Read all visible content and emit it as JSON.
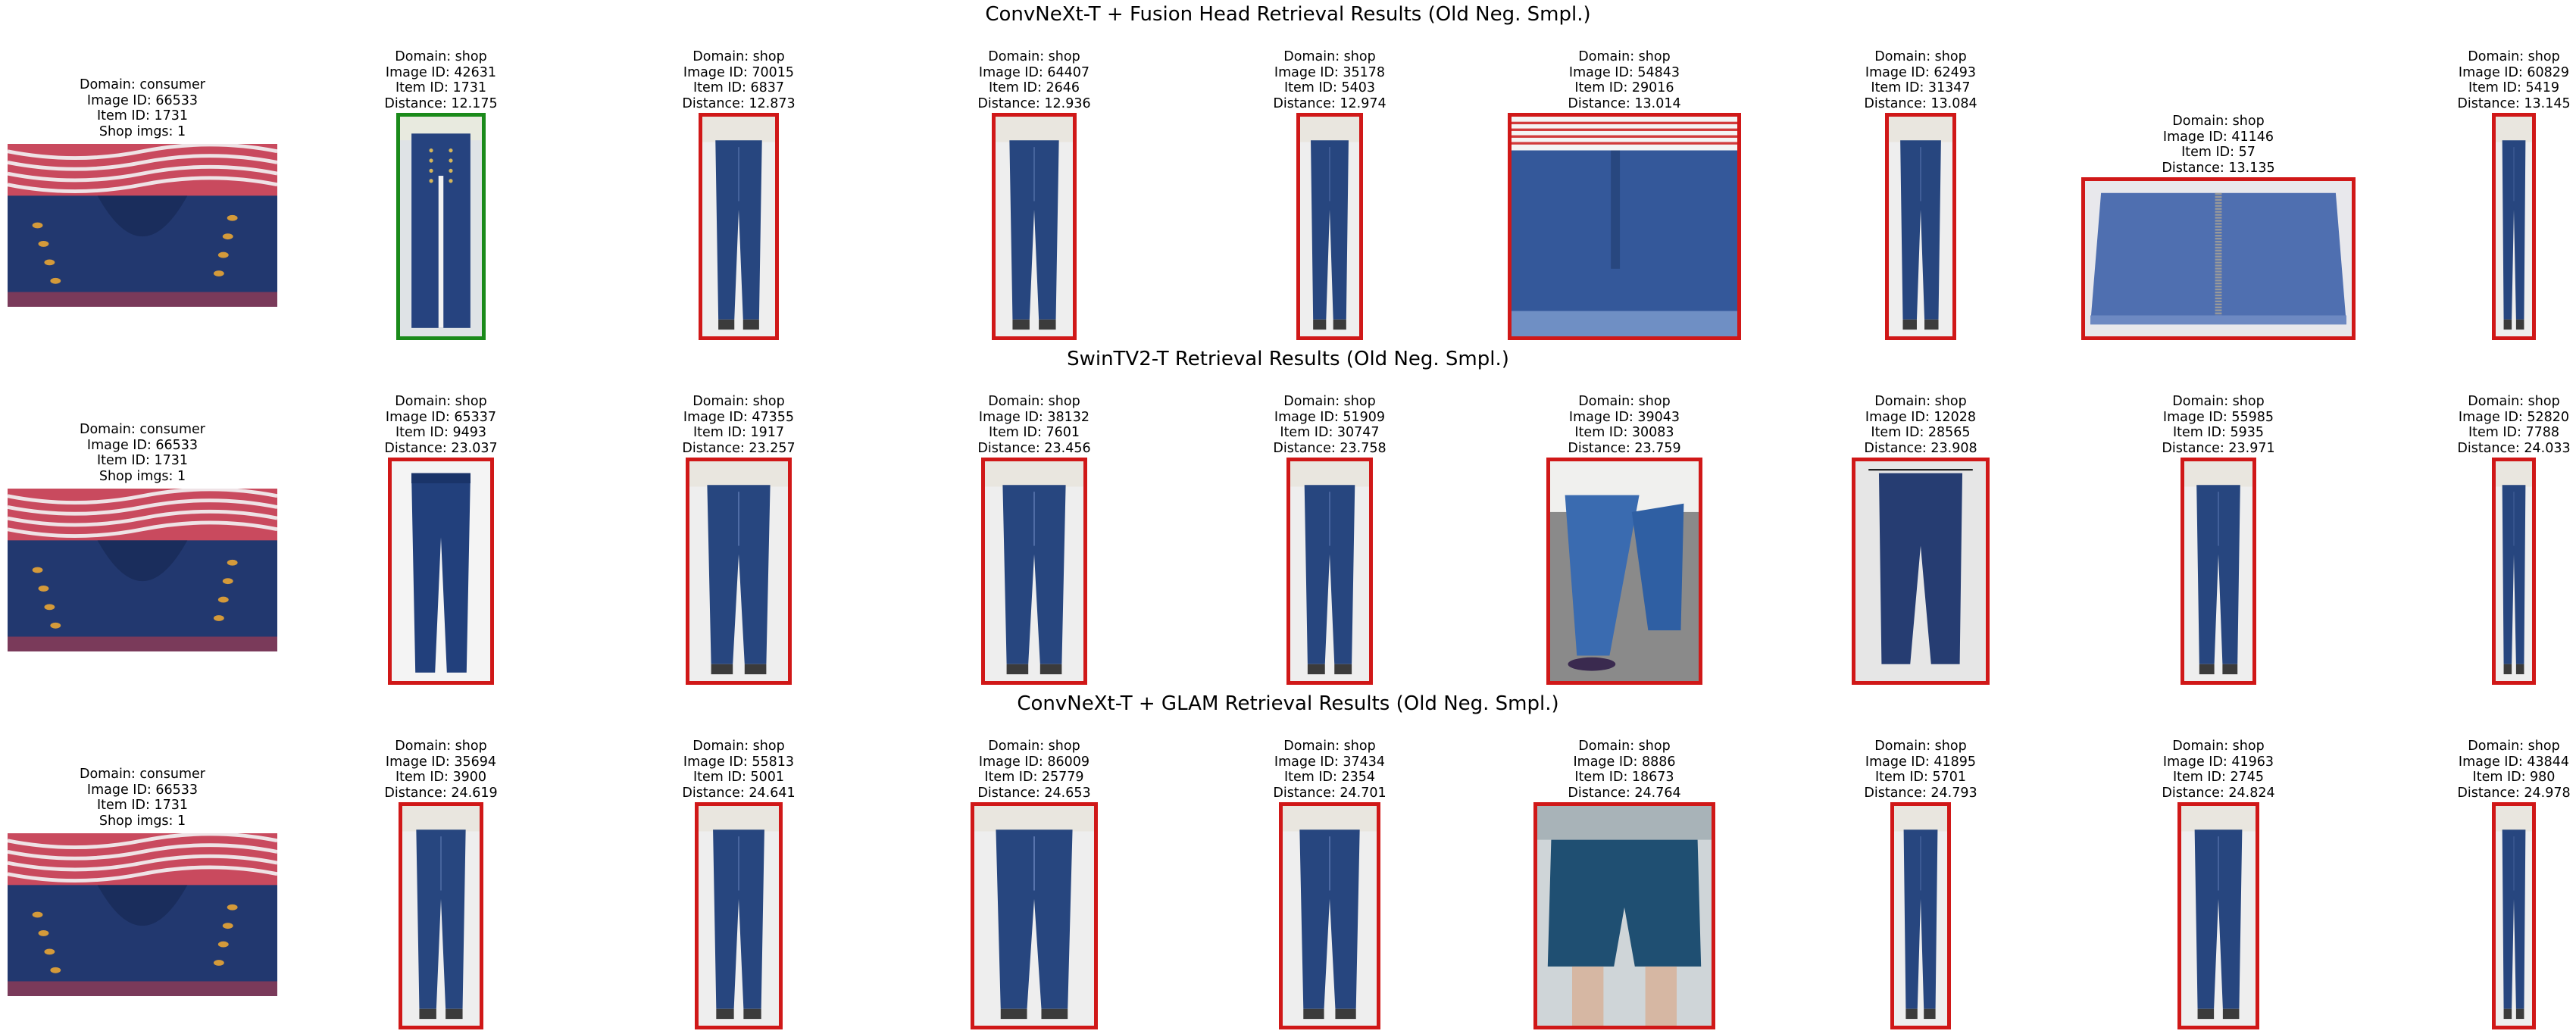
{
  "rows": [
    {
      "title": "ConvNeXt-T + Fusion Head Retrieval Results (Old Neg. Smpl.)",
      "query": {
        "domain": "Domain: consumer",
        "image_id": "Image ID: 66533",
        "item_id": "Item ID: 1731",
        "shop_imgs": "Shop imgs: 1"
      },
      "results": [
        {
          "domain": "Domain: shop",
          "image_id": "Image ID: 42631",
          "item_id": "Item ID: 1731",
          "distance": "Distance: 12.175",
          "match": true,
          "kind": "jeans-front"
        },
        {
          "domain": "Domain: shop",
          "image_id": "Image ID: 70015",
          "item_id": "Item ID: 6837",
          "distance": "Distance: 12.873",
          "match": false,
          "kind": "jeans-model"
        },
        {
          "domain": "Domain: shop",
          "image_id": "Image ID: 64407",
          "item_id": "Item ID: 2646",
          "distance": "Distance: 12.936",
          "match": false,
          "kind": "jeans-model"
        },
        {
          "domain": "Domain: shop",
          "image_id": "Image ID: 35178",
          "item_id": "Item ID: 5403",
          "distance": "Distance: 12.974",
          "match": false,
          "kind": "jeans-model"
        },
        {
          "domain": "Domain: shop",
          "image_id": "Image ID: 54843",
          "item_id": "Item ID: 29016",
          "distance": "Distance: 13.014",
          "match": false,
          "kind": "shorts-closeup"
        },
        {
          "domain": "Domain: shop",
          "image_id": "Image ID: 62493",
          "item_id": "Item ID: 31347",
          "distance": "Distance: 13.084",
          "match": false,
          "kind": "jeans-model"
        },
        {
          "domain": "Domain: shop",
          "image_id": "Image ID: 41146",
          "item_id": "Item ID: 57",
          "distance": "Distance: 13.135",
          "match": false,
          "kind": "skirt"
        },
        {
          "domain": "Domain: shop",
          "image_id": "Image ID: 60829",
          "item_id": "Item ID: 5419",
          "distance": "Distance: 13.145",
          "match": false,
          "kind": "jeans-model"
        }
      ]
    },
    {
      "title": "SwinTV2-T Retrieval Results (Old Neg. Smpl.)",
      "query": {
        "domain": "Domain: consumer",
        "image_id": "Image ID: 66533",
        "item_id": "Item ID: 1731",
        "shop_imgs": "Shop imgs: 1"
      },
      "results": [
        {
          "domain": "Domain: shop",
          "image_id": "Image ID: 65337",
          "item_id": "Item ID: 9493",
          "distance": "Distance: 23.037",
          "match": false,
          "kind": "jeans-flat"
        },
        {
          "domain": "Domain: shop",
          "image_id": "Image ID: 47355",
          "item_id": "Item ID: 1917",
          "distance": "Distance: 23.257",
          "match": false,
          "kind": "jeans-model"
        },
        {
          "domain": "Domain: shop",
          "image_id": "Image ID: 38132",
          "item_id": "Item ID: 7601",
          "distance": "Distance: 23.456",
          "match": false,
          "kind": "jeans-model"
        },
        {
          "domain": "Domain: shop",
          "image_id": "Image ID: 51909",
          "item_id": "Item ID: 30747",
          "distance": "Distance: 23.758",
          "match": false,
          "kind": "jeans-model"
        },
        {
          "domain": "Domain: shop",
          "image_id": "Image ID: 39043",
          "item_id": "Item ID: 30083",
          "distance": "Distance: 23.759",
          "match": false,
          "kind": "jeans-legs"
        },
        {
          "domain": "Domain: shop",
          "image_id": "Image ID: 12028",
          "item_id": "Item ID: 28565",
          "distance": "Distance: 23.908",
          "match": false,
          "kind": "jeans-hanger"
        },
        {
          "domain": "Domain: shop",
          "image_id": "Image ID: 55985",
          "item_id": "Item ID: 5935",
          "distance": "Distance: 23.971",
          "match": false,
          "kind": "jeans-model"
        },
        {
          "domain": "Domain: shop",
          "image_id": "Image ID: 52820",
          "item_id": "Item ID: 7788",
          "distance": "Distance: 24.033",
          "match": false,
          "kind": "jeans-model"
        }
      ]
    },
    {
      "title": "ConvNeXt-T + GLAM Retrieval Results (Old Neg. Smpl.)",
      "query": {
        "domain": "Domain: consumer",
        "image_id": "Image ID: 66533",
        "item_id": "Item ID: 1731",
        "shop_imgs": "Shop imgs: 1"
      },
      "results": [
        {
          "domain": "Domain: shop",
          "image_id": "Image ID: 35694",
          "item_id": "Item ID: 3900",
          "distance": "Distance: 24.619",
          "match": false,
          "kind": "jeans-model"
        },
        {
          "domain": "Domain: shop",
          "image_id": "Image ID: 55813",
          "item_id": "Item ID: 5001",
          "distance": "Distance: 24.641",
          "match": false,
          "kind": "jeans-model"
        },
        {
          "domain": "Domain: shop",
          "image_id": "Image ID: 86009",
          "item_id": "Item ID: 25779",
          "distance": "Distance: 24.653",
          "match": false,
          "kind": "jeans-model"
        },
        {
          "domain": "Domain: shop",
          "image_id": "Image ID: 37434",
          "item_id": "Item ID: 2354",
          "distance": "Distance: 24.701",
          "match": false,
          "kind": "jeans-model"
        },
        {
          "domain": "Domain: shop",
          "image_id": "Image ID: 8886",
          "item_id": "Item ID: 18673",
          "distance": "Distance: 24.764",
          "match": false,
          "kind": "shorts-model"
        },
        {
          "domain": "Domain: shop",
          "image_id": "Image ID: 41895",
          "item_id": "Item ID: 5701",
          "distance": "Distance: 24.793",
          "match": false,
          "kind": "jeans-model"
        },
        {
          "domain": "Domain: shop",
          "image_id": "Image ID: 41963",
          "item_id": "Item ID: 2745",
          "distance": "Distance: 24.824",
          "match": false,
          "kind": "jeans-model"
        },
        {
          "domain": "Domain: shop",
          "image_id": "Image ID: 43844",
          "item_id": "Item ID: 980",
          "distance": "Distance: 24.978",
          "match": false,
          "kind": "jeans-model"
        }
      ]
    }
  ],
  "colors": {
    "match": "#1a8a1a",
    "non_match": "#d01818",
    "denim": "#1f3a78"
  }
}
